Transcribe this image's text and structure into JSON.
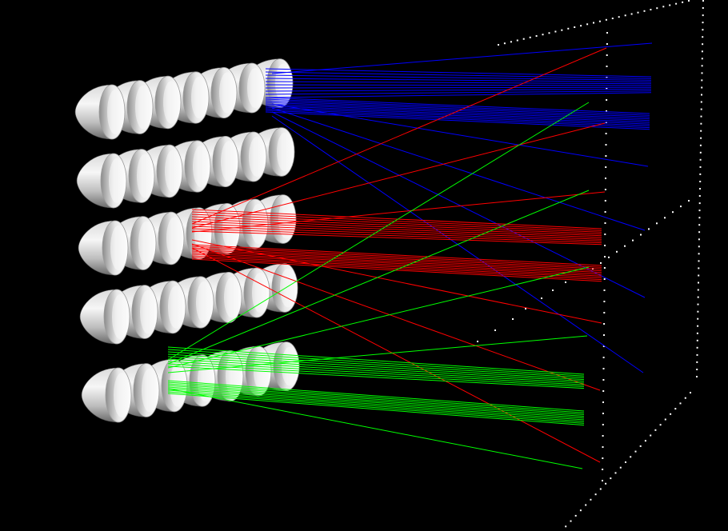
{
  "scene": {
    "description_free": true,
    "background": "#000000",
    "colors": {
      "reflector_light": "#f4f4f4",
      "reflector_mid": "#c2c2c2",
      "reflector_dark": "#5e5e5e",
      "ray_blue": "#0000ff",
      "ray_red": "#ff0000",
      "ray_green": "#00ff00",
      "dot": "#ffffff"
    },
    "reflector_rows": 5,
    "reflectors_per_row": 7
  }
}
